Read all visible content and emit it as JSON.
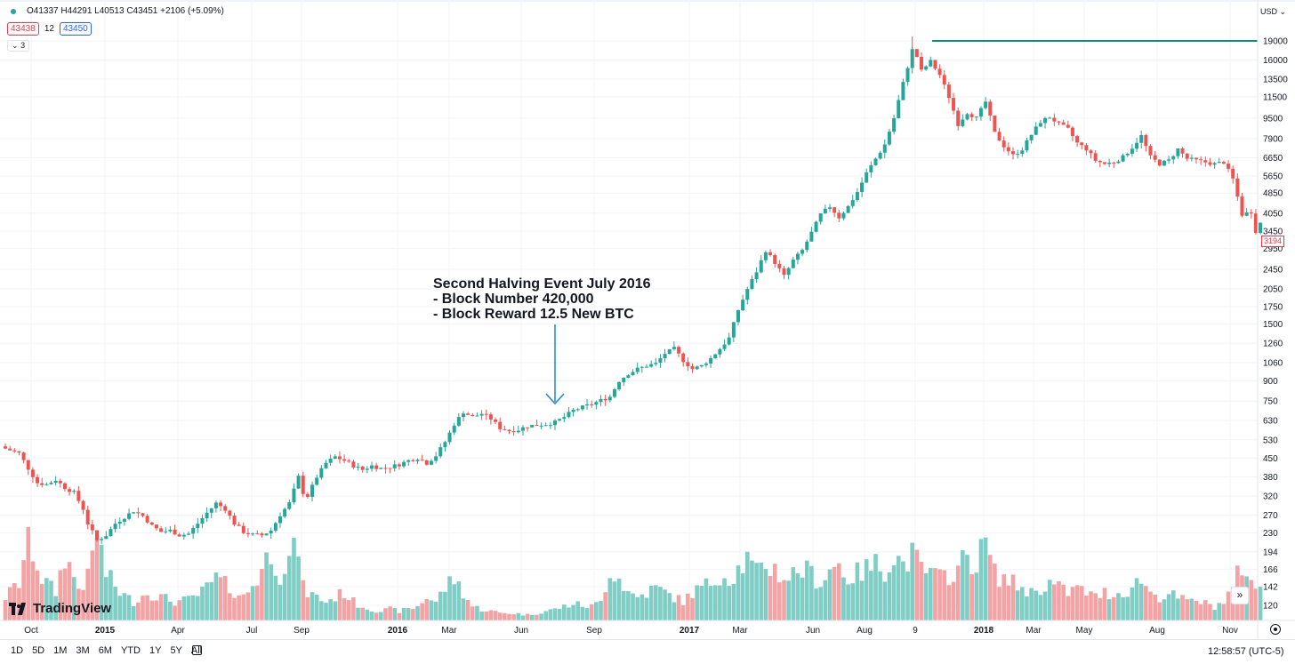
{
  "legend": {
    "ohlc": "O41337 H44291 L40513 C43451 +2106 (+5.09%)",
    "sell_price": "43438",
    "spread": "12",
    "buy_price": "43450",
    "indicators_count": "3"
  },
  "currency": "USD",
  "last_price_badge": "3194",
  "goto_realtime_icon": "double-chevron-right-icon",
  "logo_text": "TradingView",
  "toolbar": {
    "ranges": [
      "1D",
      "5D",
      "1M",
      "3M",
      "6M",
      "YTD",
      "1Y",
      "5Y",
      "All"
    ],
    "time": "12:58:57 (UTC-5)"
  },
  "colors": {
    "up": "#26a69a",
    "down": "#ef5350",
    "vol_up": "#7fcdc4",
    "vol_down": "#f4a3a5",
    "resistance": "#0b8f79",
    "annotation_arrow": "#1e88c7"
  },
  "chart_data": {
    "type": "candlestick",
    "log_scale": true,
    "grid": true,
    "ylim": [
      102,
      21000
    ],
    "yticks": [
      120,
      142,
      166,
      194,
      230,
      270,
      320,
      380,
      450,
      530,
      630,
      750,
      900,
      1060,
      1260,
      1500,
      1750,
      2050,
      2450,
      2950,
      3450,
      4050,
      4850,
      5650,
      6650,
      7900,
      9500,
      11500,
      13500,
      16000,
      19000
    ],
    "xticks": [
      {
        "label": "Oct",
        "bold": false
      },
      {
        "label": "2015",
        "bold": true
      },
      {
        "label": "Apr",
        "bold": false
      },
      {
        "label": "Jul",
        "bold": false
      },
      {
        "label": "Sep",
        "bold": false
      },
      {
        "label": "2016",
        "bold": true
      },
      {
        "label": "Mar",
        "bold": false
      },
      {
        "label": "Jun",
        "bold": false
      },
      {
        "label": "Sep",
        "bold": false
      },
      {
        "label": "2017",
        "bold": true
      },
      {
        "label": "Mar",
        "bold": false
      },
      {
        "label": "Jun",
        "bold": false
      },
      {
        "label": "Aug",
        "bold": false
      },
      {
        "label": "9",
        "bold": false
      },
      {
        "label": "2018",
        "bold": true
      },
      {
        "label": "Mar",
        "bold": false
      },
      {
        "label": "May",
        "bold": false
      },
      {
        "label": "Aug",
        "bold": false
      },
      {
        "label": "Nov",
        "bold": false
      }
    ],
    "close_path": [
      [
        0,
        490
      ],
      [
        3,
        470
      ],
      [
        5,
        410
      ],
      [
        7,
        360
      ],
      [
        9,
        355
      ],
      [
        11,
        370
      ],
      [
        13,
        345
      ],
      [
        15,
        330
      ],
      [
        17,
        285
      ],
      [
        18,
        250
      ],
      [
        20,
        215
      ],
      [
        22,
        225
      ],
      [
        24,
        250
      ],
      [
        26,
        265
      ],
      [
        28,
        280
      ],
      [
        30,
        268
      ],
      [
        32,
        245
      ],
      [
        34,
        232
      ],
      [
        36,
        235
      ],
      [
        38,
        225
      ],
      [
        40,
        228
      ],
      [
        42,
        250
      ],
      [
        44,
        275
      ],
      [
        46,
        300
      ],
      [
        48,
        285
      ],
      [
        50,
        250
      ],
      [
        52,
        232
      ],
      [
        54,
        226
      ],
      [
        56,
        225
      ],
      [
        58,
        235
      ],
      [
        60,
        270
      ],
      [
        62,
        300
      ],
      [
        64,
        380
      ],
      [
        65,
        330
      ],
      [
        66,
        320
      ],
      [
        68,
        380
      ],
      [
        70,
        430
      ],
      [
        72,
        455
      ],
      [
        74,
        440
      ],
      [
        76,
        420
      ],
      [
        78,
        405
      ],
      [
        80,
        420
      ],
      [
        82,
        410
      ],
      [
        84,
        415
      ],
      [
        86,
        425
      ],
      [
        88,
        440
      ],
      [
        90,
        450
      ],
      [
        92,
        430
      ],
      [
        94,
        460
      ],
      [
        96,
        520
      ],
      [
        98,
        610
      ],
      [
        100,
        680
      ],
      [
        102,
        650
      ],
      [
        104,
        670
      ],
      [
        106,
        640
      ],
      [
        108,
        590
      ],
      [
        110,
        575
      ],
      [
        112,
        580
      ],
      [
        114,
        600
      ],
      [
        116,
        605
      ],
      [
        118,
        610
      ],
      [
        120,
        620
      ],
      [
        122,
        650
      ],
      [
        124,
        690
      ],
      [
        126,
        710
      ],
      [
        128,
        730
      ],
      [
        130,
        755
      ],
      [
        132,
        780
      ],
      [
        134,
        900
      ],
      [
        136,
        960
      ],
      [
        138,
        1000
      ],
      [
        140,
        1030
      ],
      [
        142,
        1050
      ],
      [
        144,
        1150
      ],
      [
        146,
        1200
      ],
      [
        148,
        1080
      ],
      [
        150,
        1000
      ],
      [
        152,
        1030
      ],
      [
        154,
        1100
      ],
      [
        156,
        1200
      ],
      [
        158,
        1320
      ],
      [
        160,
        1700
      ],
      [
        162,
        2050
      ],
      [
        164,
        2400
      ],
      [
        166,
        2900
      ],
      [
        168,
        2600
      ],
      [
        170,
        2300
      ],
      [
        172,
        2650
      ],
      [
        174,
        2900
      ],
      [
        176,
        3400
      ],
      [
        178,
        4000
      ],
      [
        180,
        4300
      ],
      [
        182,
        3900
      ],
      [
        184,
        4300
      ],
      [
        186,
        4900
      ],
      [
        188,
        5800
      ],
      [
        190,
        6600
      ],
      [
        192,
        7500
      ],
      [
        194,
        9500
      ],
      [
        196,
        13000
      ],
      [
        198,
        17500
      ],
      [
        199,
        16500
      ],
      [
        200,
        14500
      ],
      [
        202,
        15800
      ],
      [
        204,
        14000
      ],
      [
        206,
        11500
      ],
      [
        208,
        9000
      ],
      [
        210,
        10000
      ],
      [
        212,
        9500
      ],
      [
        214,
        11000
      ],
      [
        216,
        8300
      ],
      [
        218,
        7400
      ],
      [
        220,
        6800
      ],
      [
        222,
        7200
      ],
      [
        224,
        8200
      ],
      [
        226,
        9200
      ],
      [
        228,
        9600
      ],
      [
        230,
        9000
      ],
      [
        232,
        8600
      ],
      [
        234,
        7600
      ],
      [
        236,
        7200
      ],
      [
        238,
        6500
      ],
      [
        240,
        6300
      ],
      [
        242,
        6400
      ],
      [
        244,
        6700
      ],
      [
        246,
        7300
      ],
      [
        248,
        8100
      ],
      [
        250,
        6700
      ],
      [
        252,
        6300
      ],
      [
        254,
        6500
      ],
      [
        256,
        7200
      ],
      [
        258,
        6600
      ],
      [
        260,
        6500
      ],
      [
        262,
        6400
      ],
      [
        264,
        6300
      ],
      [
        266,
        6400
      ],
      [
        268,
        5500
      ],
      [
        270,
        4000
      ],
      [
        272,
        4100
      ],
      [
        273,
        3450
      ],
      [
        274,
        3700
      ]
    ],
    "max_high": 19800,
    "resistance_level": 19000,
    "volume_profile": [
      [
        0,
        0.25
      ],
      [
        3,
        0.4
      ],
      [
        5,
        0.9
      ],
      [
        8,
        0.45
      ],
      [
        11,
        0.3
      ],
      [
        13,
        0.7
      ],
      [
        16,
        0.35
      ],
      [
        18,
        0.45
      ],
      [
        20,
        0.95
      ],
      [
        22,
        0.5
      ],
      [
        25,
        0.3
      ],
      [
        28,
        0.2
      ],
      [
        31,
        0.3
      ],
      [
        34,
        0.25
      ],
      [
        37,
        0.2
      ],
      [
        40,
        0.22
      ],
      [
        43,
        0.3
      ],
      [
        46,
        0.45
      ],
      [
        49,
        0.35
      ],
      [
        52,
        0.25
      ],
      [
        55,
        0.45
      ],
      [
        58,
        0.75
      ],
      [
        60,
        0.5
      ],
      [
        62,
        0.65
      ],
      [
        64,
        0.8
      ],
      [
        65,
        0.35
      ],
      [
        66,
        0.3
      ],
      [
        68,
        0.25
      ],
      [
        70,
        0.2
      ],
      [
        72,
        0.25
      ],
      [
        74,
        0.3
      ],
      [
        76,
        0.2
      ],
      [
        78,
        0.15
      ],
      [
        80,
        0.12
      ],
      [
        82,
        0.1
      ],
      [
        84,
        0.12
      ],
      [
        86,
        0.1
      ],
      [
        88,
        0.12
      ],
      [
        90,
        0.15
      ],
      [
        92,
        0.25
      ],
      [
        94,
        0.2
      ],
      [
        96,
        0.35
      ],
      [
        98,
        0.45
      ],
      [
        100,
        0.3
      ],
      [
        102,
        0.15
      ],
      [
        104,
        0.12
      ],
      [
        106,
        0.1
      ],
      [
        108,
        0.08
      ],
      [
        110,
        0.08
      ],
      [
        112,
        0.07
      ],
      [
        114,
        0.06
      ],
      [
        116,
        0.08
      ],
      [
        118,
        0.1
      ],
      [
        120,
        0.12
      ],
      [
        122,
        0.15
      ],
      [
        124,
        0.18
      ],
      [
        126,
        0.16
      ],
      [
        128,
        0.15
      ],
      [
        130,
        0.2
      ],
      [
        132,
        0.55
      ],
      [
        134,
        0.45
      ],
      [
        136,
        0.3
      ],
      [
        138,
        0.25
      ],
      [
        140,
        0.3
      ],
      [
        142,
        0.35
      ],
      [
        144,
        0.3
      ],
      [
        146,
        0.25
      ],
      [
        148,
        0.2
      ],
      [
        150,
        0.3
      ],
      [
        152,
        0.35
      ],
      [
        154,
        0.4
      ],
      [
        156,
        0.5
      ],
      [
        158,
        0.45
      ],
      [
        160,
        0.55
      ],
      [
        162,
        0.65
      ],
      [
        164,
        0.5
      ],
      [
        166,
        0.6
      ],
      [
        168,
        0.55
      ],
      [
        170,
        0.45
      ],
      [
        172,
        0.5
      ],
      [
        174,
        0.55
      ],
      [
        176,
        0.5
      ],
      [
        178,
        0.4
      ],
      [
        180,
        0.55
      ],
      [
        182,
        0.6
      ],
      [
        184,
        0.45
      ],
      [
        186,
        0.5
      ],
      [
        188,
        0.55
      ],
      [
        190,
        0.6
      ],
      [
        192,
        0.55
      ],
      [
        194,
        0.7
      ],
      [
        196,
        0.6
      ],
      [
        198,
        0.7
      ],
      [
        200,
        0.55
      ],
      [
        202,
        0.5
      ],
      [
        204,
        0.45
      ],
      [
        206,
        0.5
      ],
      [
        208,
        0.55
      ],
      [
        210,
        0.7
      ],
      [
        212,
        0.6
      ],
      [
        214,
        0.85
      ],
      [
        216,
        0.5
      ],
      [
        218,
        0.45
      ],
      [
        220,
        0.4
      ],
      [
        222,
        0.35
      ],
      [
        224,
        0.3
      ],
      [
        226,
        0.35
      ],
      [
        228,
        0.4
      ],
      [
        230,
        0.35
      ],
      [
        232,
        0.3
      ],
      [
        234,
        0.35
      ],
      [
        236,
        0.3
      ],
      [
        238,
        0.25
      ],
      [
        240,
        0.3
      ],
      [
        242,
        0.28
      ],
      [
        244,
        0.3
      ],
      [
        246,
        0.35
      ],
      [
        248,
        0.45
      ],
      [
        250,
        0.3
      ],
      [
        252,
        0.25
      ],
      [
        254,
        0.28
      ],
      [
        256,
        0.25
      ],
      [
        258,
        0.2
      ],
      [
        260,
        0.22
      ],
      [
        262,
        0.18
      ],
      [
        264,
        0.15
      ],
      [
        266,
        0.2
      ],
      [
        268,
        0.35
      ],
      [
        270,
        0.6
      ],
      [
        272,
        0.45
      ],
      [
        273,
        0.3
      ],
      [
        274,
        0.35
      ]
    ]
  },
  "annotation": {
    "lines": [
      "Second Halving Event July 2016",
      "- Block Number 420,000",
      "- Block Reward 12.5 New BTC"
    ]
  }
}
